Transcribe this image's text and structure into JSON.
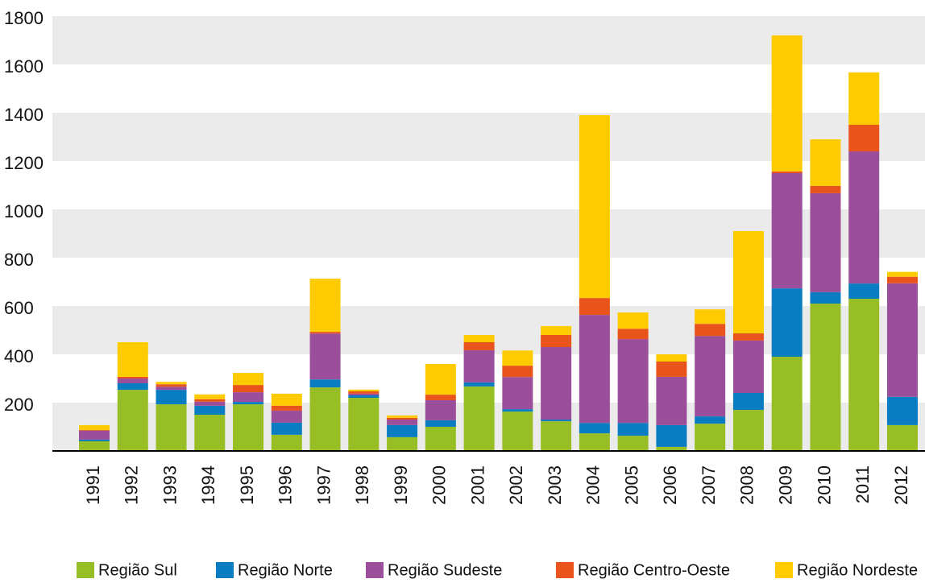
{
  "chart_data": {
    "type": "stacked-bar",
    "categories": [
      "1991",
      "1992",
      "1993",
      "1994",
      "1995",
      "1996",
      "1997",
      "1998",
      "1999",
      "2000",
      "2001",
      "2002",
      "2003",
      "2004",
      "2005",
      "2006",
      "2007",
      "2008",
      "2009",
      "2010",
      "2011",
      "2012"
    ],
    "series": [
      {
        "name": "Região Sul",
        "color": "#97bf25",
        "values": [
          40,
          253,
          193,
          150,
          193,
          67,
          263,
          220,
          57,
          100,
          267,
          163,
          123,
          73,
          63,
          17,
          113,
          170,
          390,
          610,
          630,
          107
        ]
      },
      {
        "name": "Região Norte",
        "color": "#0a7dc2",
        "values": [
          7,
          27,
          60,
          37,
          10,
          50,
          33,
          10,
          50,
          27,
          17,
          10,
          7,
          43,
          53,
          90,
          30,
          70,
          283,
          47,
          63,
          117
        ]
      },
      {
        "name": "Região Sudeste",
        "color": "#9b4f9a",
        "values": [
          37,
          20,
          13,
          17,
          40,
          50,
          190,
          7,
          23,
          83,
          133,
          133,
          300,
          447,
          347,
          200,
          333,
          217,
          477,
          410,
          547,
          470
        ]
      },
      {
        "name": "Região Centro-Oeste",
        "color": "#e8541c",
        "values": [
          3,
          7,
          10,
          10,
          30,
          20,
          7,
          10,
          7,
          23,
          33,
          47,
          50,
          70,
          43,
          63,
          50,
          30,
          7,
          30,
          110,
          27
        ]
      },
      {
        "name": "Região Nordeste",
        "color": "#fecb00",
        "values": [
          20,
          143,
          10,
          20,
          50,
          50,
          220,
          7,
          10,
          127,
          30,
          63,
          37,
          757,
          67,
          30,
          60,
          423,
          563,
          193,
          217,
          20
        ]
      }
    ],
    "ylim": [
      0,
      1800
    ],
    "yticks": [
      200,
      400,
      600,
      800,
      1000,
      1200,
      1400,
      1600,
      1800
    ],
    "grid": true
  }
}
